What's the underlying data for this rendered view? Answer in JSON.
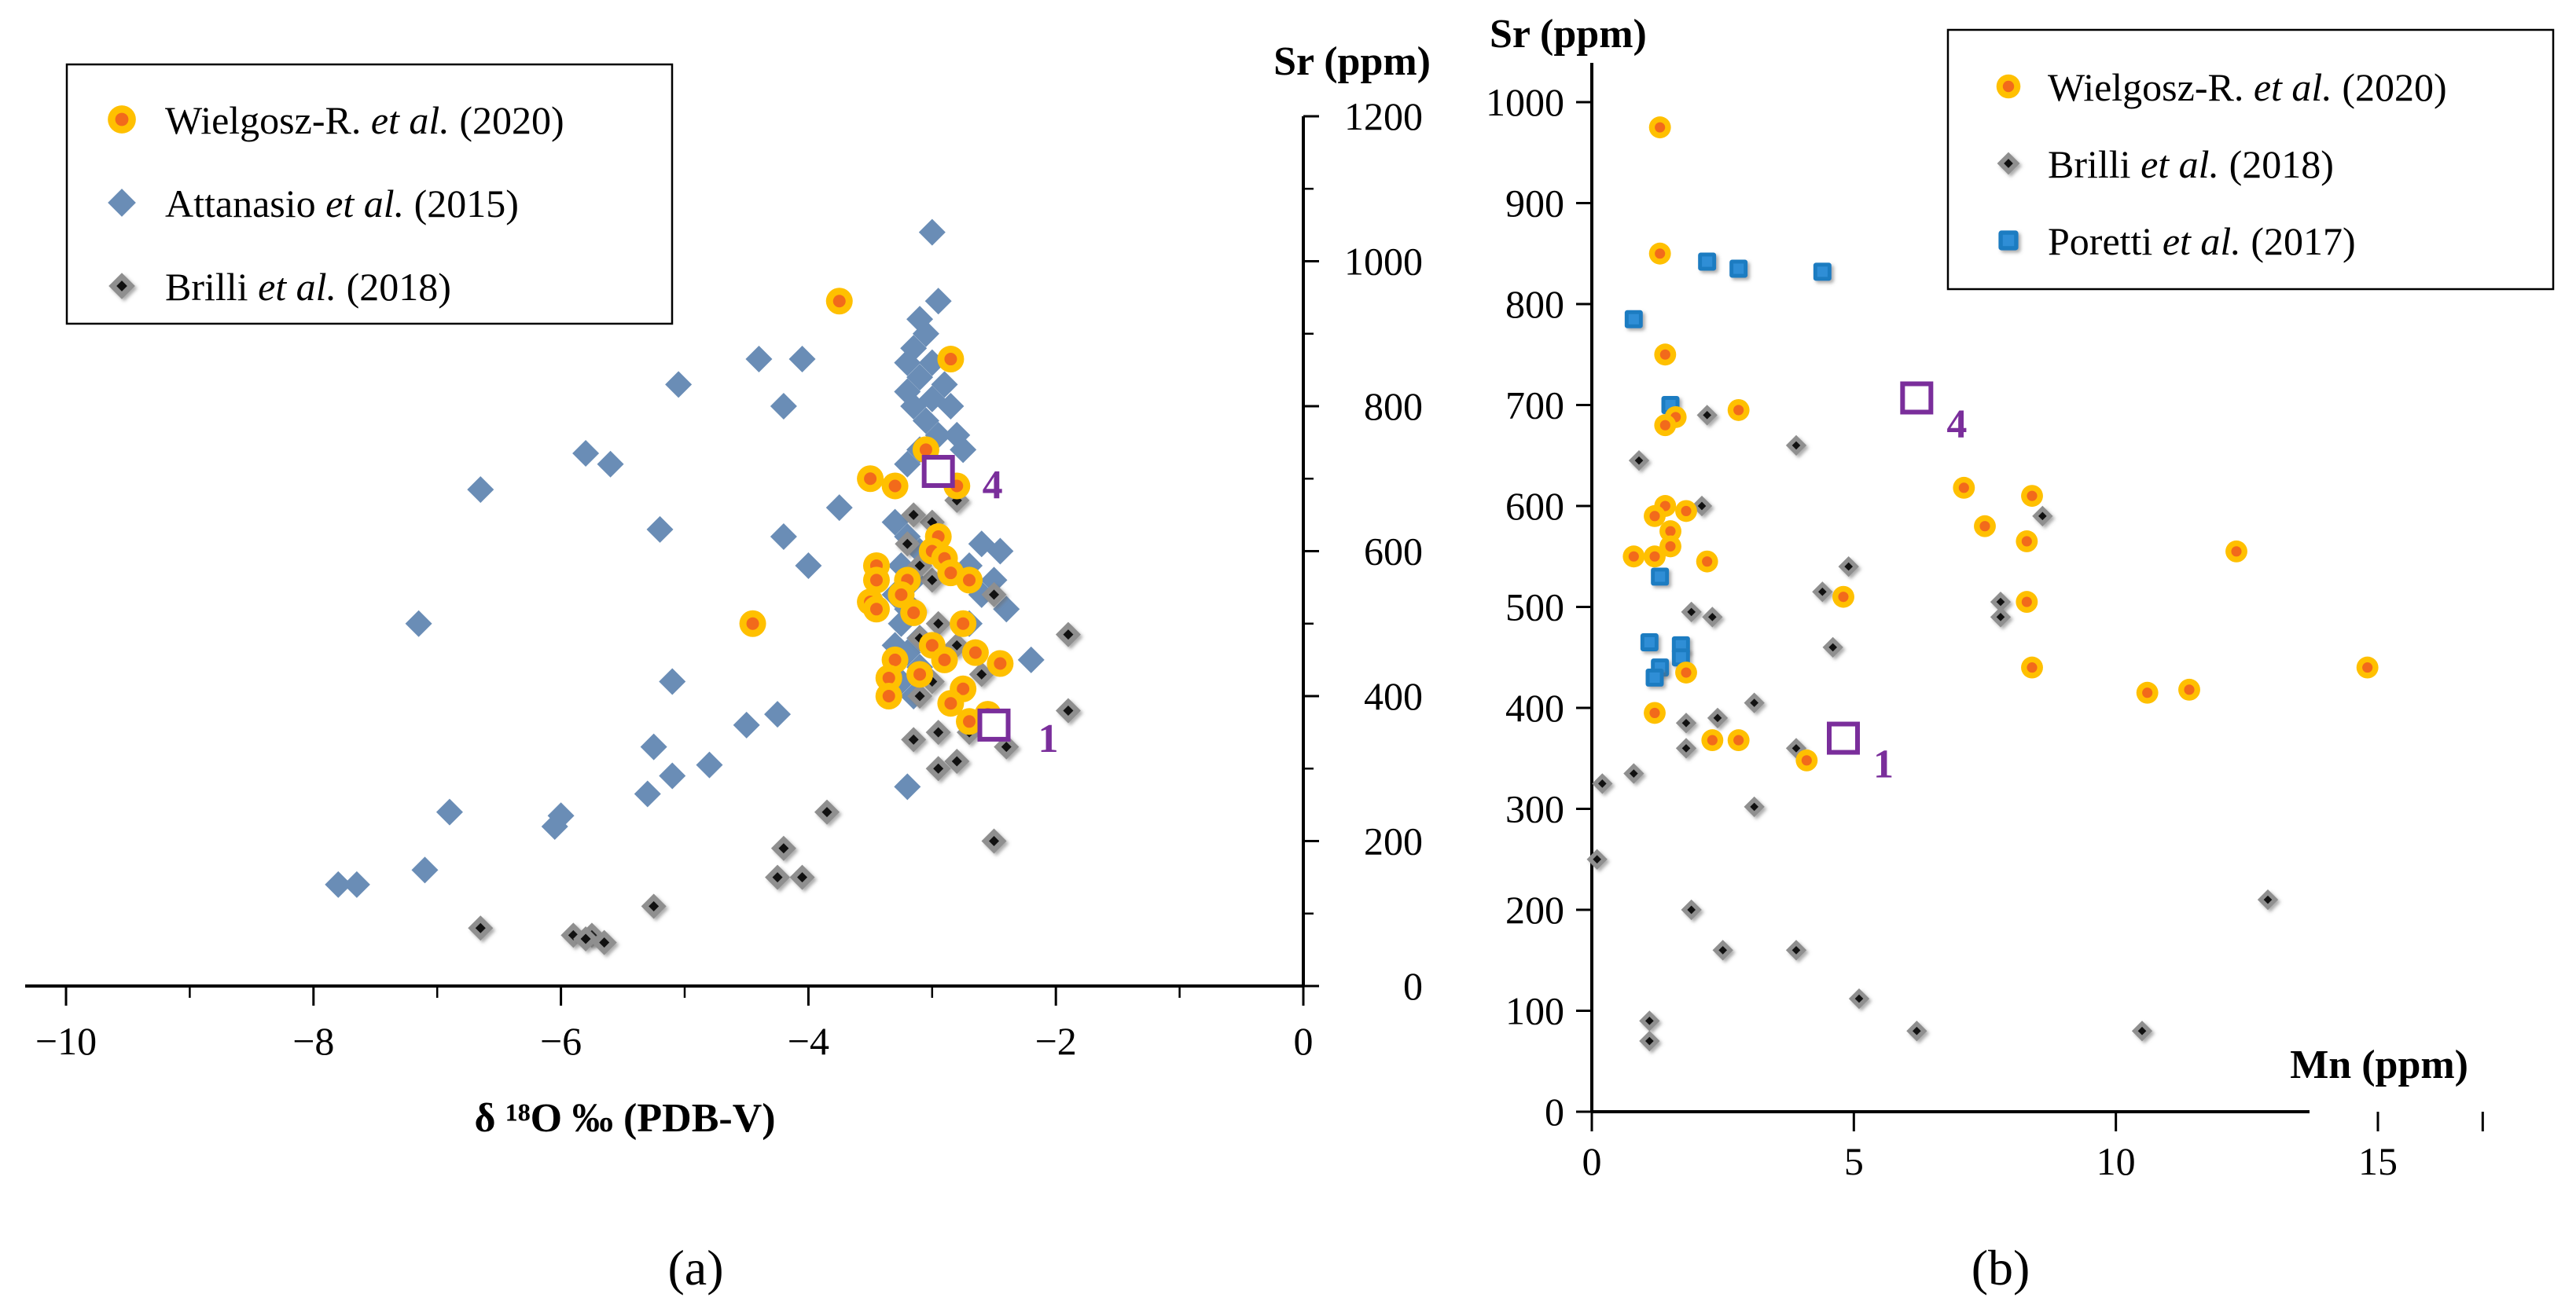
{
  "chart_data": [
    {
      "panel_label": "(a)",
      "type": "scatter",
      "xlabel": "δ ¹⁸O ‰ (PDB-V)",
      "ylabel": "Sr (ppm)",
      "xlim": [
        -10,
        0
      ],
      "ylim": [
        0,
        1200
      ],
      "x_ticks": [
        -10,
        -8,
        -6,
        -4,
        -2,
        0
      ],
      "y_ticks": [
        0,
        200,
        400,
        600,
        800,
        1000,
        1200
      ],
      "grid": false,
      "legend_position": "top-left",
      "legend": [
        {
          "name_main": "Wielgosz-R. ",
          "name_italic": "et al.",
          "name_tail": " (2020)",
          "marker": "orange-circle"
        },
        {
          "name_main": "Attanasio ",
          "name_italic": "et al.",
          "name_tail": "  (2015)",
          "marker": "blue-diamond"
        },
        {
          "name_main": "Brilli ",
          "name_italic": "et al.",
          "name_tail": "  (2018)",
          "marker": "gray-diamond"
        }
      ],
      "series": [
        {
          "name": "Attanasio et al. (2015)",
          "marker": "blue-diamond",
          "points": [
            [
              -3.0,
              1040
            ],
            [
              -2.95,
              945
            ],
            [
              -3.1,
              920
            ],
            [
              -3.05,
              900
            ],
            [
              -3.15,
              880
            ],
            [
              -3.2,
              860
            ],
            [
              -3.0,
              860
            ],
            [
              -3.1,
              840
            ],
            [
              -3.2,
              820
            ],
            [
              -2.9,
              830
            ],
            [
              -3.0,
              810
            ],
            [
              -3.15,
              800
            ],
            [
              -3.05,
              780
            ],
            [
              -2.95,
              760
            ],
            [
              -3.1,
              740
            ],
            [
              -3.2,
              720
            ],
            [
              -2.85,
              800
            ],
            [
              -2.8,
              760
            ],
            [
              -2.75,
              740
            ],
            [
              -4.4,
              865
            ],
            [
              -4.05,
              865
            ],
            [
              -5.05,
              830
            ],
            [
              -4.2,
              800
            ],
            [
              -5.8,
              735
            ],
            [
              -5.6,
              720
            ],
            [
              -6.65,
              685
            ],
            [
              -3.75,
              660
            ],
            [
              -5.2,
              630
            ],
            [
              -4.2,
              620
            ],
            [
              -4.0,
              580
            ],
            [
              -3.3,
              640
            ],
            [
              -3.2,
              620
            ],
            [
              -3.1,
              600
            ],
            [
              -3.25,
              580
            ],
            [
              -3.15,
              560
            ],
            [
              -3.3,
              540
            ],
            [
              -3.2,
              520
            ],
            [
              -3.25,
              500
            ],
            [
              -3.1,
              480
            ],
            [
              -3.3,
              470
            ],
            [
              -3.2,
              460
            ],
            [
              -3.1,
              440
            ],
            [
              -3.25,
              420
            ],
            [
              -3.15,
              400
            ],
            [
              -2.6,
              610
            ],
            [
              -2.45,
              600
            ],
            [
              -2.7,
              580
            ],
            [
              -2.5,
              560
            ],
            [
              -2.6,
              540
            ],
            [
              -2.4,
              520
            ],
            [
              -2.7,
              500
            ],
            [
              -7.15,
              500
            ],
            [
              -2.2,
              450
            ],
            [
              -5.1,
              420
            ],
            [
              -4.25,
              375
            ],
            [
              -4.5,
              360
            ],
            [
              -5.25,
              330
            ],
            [
              -4.8,
              305
            ],
            [
              -5.1,
              290
            ],
            [
              -5.3,
              265
            ],
            [
              -3.2,
              275
            ],
            [
              -6.9,
              240
            ],
            [
              -6.0,
              235
            ],
            [
              -6.05,
              220
            ],
            [
              -7.1,
              160
            ],
            [
              -7.8,
              140
            ],
            [
              -7.65,
              140
            ]
          ]
        },
        {
          "name": "Brilli et al. (2018)",
          "marker": "gray-diamond",
          "points": [
            [
              -1.9,
              485
            ],
            [
              -1.9,
              380
            ],
            [
              -2.5,
              200
            ],
            [
              -2.4,
              330
            ],
            [
              -2.5,
              360
            ],
            [
              -2.7,
              350
            ],
            [
              -2.8,
              310
            ],
            [
              -2.95,
              300
            ],
            [
              -3.15,
              340
            ],
            [
              -2.95,
              350
            ],
            [
              -3.1,
              400
            ],
            [
              -3.0,
              420
            ],
            [
              -2.6,
              430
            ],
            [
              -2.8,
              470
            ],
            [
              -3.1,
              480
            ],
            [
              -2.95,
              500
            ],
            [
              -3.15,
              520
            ],
            [
              -2.5,
              540
            ],
            [
              -3.0,
              560
            ],
            [
              -3.1,
              580
            ],
            [
              -3.2,
              610
            ],
            [
              -3.0,
              640
            ],
            [
              -2.8,
              670
            ],
            [
              -3.15,
              650
            ],
            [
              -3.85,
              240
            ],
            [
              -4.2,
              190
            ],
            [
              -4.25,
              150
            ],
            [
              -4.05,
              150
            ],
            [
              -5.25,
              110
            ],
            [
              -6.65,
              80
            ],
            [
              -5.9,
              70
            ],
            [
              -5.75,
              70
            ],
            [
              -5.8,
              65
            ],
            [
              -5.65,
              60
            ]
          ]
        },
        {
          "name": "Wielgosz-R. et al. (2020)",
          "marker": "orange-circle",
          "points": [
            [
              -3.75,
              945
            ],
            [
              -2.85,
              865
            ],
            [
              -3.05,
              740
            ],
            [
              -3.5,
              700
            ],
            [
              -3.3,
              690
            ],
            [
              -2.8,
              690
            ],
            [
              -2.95,
              620
            ],
            [
              -3.0,
              600
            ],
            [
              -2.9,
              590
            ],
            [
              -3.45,
              580
            ],
            [
              -2.85,
              570
            ],
            [
              -3.45,
              560
            ],
            [
              -3.2,
              560
            ],
            [
              -2.7,
              560
            ],
            [
              -3.25,
              540
            ],
            [
              -3.5,
              530
            ],
            [
              -3.45,
              520
            ],
            [
              -3.15,
              515
            ],
            [
              -2.75,
              500
            ],
            [
              -4.45,
              500
            ],
            [
              -3.0,
              470
            ],
            [
              -2.65,
              460
            ],
            [
              -2.9,
              450
            ],
            [
              -3.3,
              450
            ],
            [
              -2.45,
              445
            ],
            [
              -3.1,
              430
            ],
            [
              -3.35,
              425
            ],
            [
              -2.75,
              410
            ],
            [
              -3.35,
              400
            ],
            [
              -2.85,
              390
            ],
            [
              -2.55,
              375
            ],
            [
              -2.7,
              365
            ]
          ]
        }
      ],
      "annotations": [
        {
          "label": "4",
          "x": -2.95,
          "y": 710,
          "marker": "purple-open-square"
        },
        {
          "label": "1",
          "x": -2.5,
          "y": 360,
          "marker": "purple-open-square"
        }
      ]
    },
    {
      "panel_label": "(b)",
      "type": "scatter",
      "xlabel": "Mn (ppm)",
      "ylabel": "Sr (ppm)",
      "xlim": [
        0,
        17
      ],
      "ylim": [
        0,
        1000
      ],
      "x_ticks": [
        0,
        5,
        10,
        15
      ],
      "y_ticks": [
        0,
        100,
        200,
        300,
        400,
        500,
        600,
        700,
        800,
        900,
        1000
      ],
      "grid": false,
      "legend_position": "top-right",
      "legend": [
        {
          "name_main": "Wielgosz-R. ",
          "name_italic": "et al.",
          "name_tail": " (2020)",
          "marker": "orange-circle"
        },
        {
          "name_main": "Brilli ",
          "name_italic": "et al.",
          "name_tail": " (2018)",
          "marker": "gray-diamond"
        },
        {
          "name_main": "Poretti ",
          "name_italic": "et al.",
          "name_tail": " (2017)",
          "marker": "blue-square"
        }
      ],
      "series": [
        {
          "name": "Brilli et al. (2018)",
          "marker": "gray-diamond",
          "points": [
            [
              2.2,
              690
            ],
            [
              0.9,
              645
            ],
            [
              3.9,
              660
            ],
            [
              2.1,
              600
            ],
            [
              8.6,
              590
            ],
            [
              4.9,
              540
            ],
            [
              4.4,
              515
            ],
            [
              1.9,
              495
            ],
            [
              2.3,
              490
            ],
            [
              7.8,
              505
            ],
            [
              7.8,
              490
            ],
            [
              4.6,
              460
            ],
            [
              3.1,
              405
            ],
            [
              1.8,
              385
            ],
            [
              2.4,
              390
            ],
            [
              1.8,
              360
            ],
            [
              3.9,
              360
            ],
            [
              0.2,
              325
            ],
            [
              0.8,
              335
            ],
            [
              3.1,
              302
            ],
            [
              0.1,
              250
            ],
            [
              1.9,
              200
            ],
            [
              12.9,
              210
            ],
            [
              2.5,
              160
            ],
            [
              3.9,
              160
            ],
            [
              5.1,
              112
            ],
            [
              1.1,
              90
            ],
            [
              1.1,
              70
            ],
            [
              6.2,
              80
            ],
            [
              10.5,
              80
            ]
          ]
        },
        {
          "name": "Poretti et al. (2017)",
          "marker": "blue-square",
          "points": [
            [
              0.8,
              785
            ],
            [
              2.2,
              842
            ],
            [
              2.8,
              835
            ],
            [
              4.4,
              832
            ],
            [
              1.5,
              700
            ],
            [
              1.3,
              530
            ],
            [
              1.1,
              465
            ],
            [
              1.7,
              462
            ],
            [
              1.7,
              450
            ],
            [
              1.3,
              440
            ],
            [
              1.2,
              430
            ]
          ]
        },
        {
          "name": "Wielgosz-R. et al. (2020)",
          "marker": "orange-circle",
          "points": [
            [
              1.3,
              975
            ],
            [
              1.3,
              850
            ],
            [
              1.4,
              750
            ],
            [
              2.8,
              695
            ],
            [
              1.6,
              688
            ],
            [
              1.4,
              680
            ],
            [
              7.1,
              618
            ],
            [
              8.4,
              610
            ],
            [
              1.4,
              600
            ],
            [
              1.8,
              595
            ],
            [
              1.2,
              590
            ],
            [
              1.5,
              575
            ],
            [
              7.5,
              580
            ],
            [
              1.5,
              560
            ],
            [
              8.3,
              565
            ],
            [
              0.8,
              550
            ],
            [
              1.2,
              550
            ],
            [
              2.2,
              545
            ],
            [
              12.3,
              555
            ],
            [
              4.8,
              510
            ],
            [
              8.3,
              505
            ],
            [
              1.8,
              435
            ],
            [
              8.4,
              440
            ],
            [
              14.8,
              440
            ],
            [
              10.6,
              415
            ],
            [
              11.4,
              418
            ],
            [
              1.2,
              395
            ],
            [
              2.3,
              368
            ],
            [
              2.8,
              368
            ],
            [
              4.1,
              348
            ]
          ]
        }
      ],
      "annotations": [
        {
          "label": "4",
          "x": 6.2,
          "y": 707,
          "marker": "purple-open-square"
        },
        {
          "label": "1",
          "x": 4.8,
          "y": 370,
          "marker": "purple-open-square"
        }
      ]
    }
  ]
}
